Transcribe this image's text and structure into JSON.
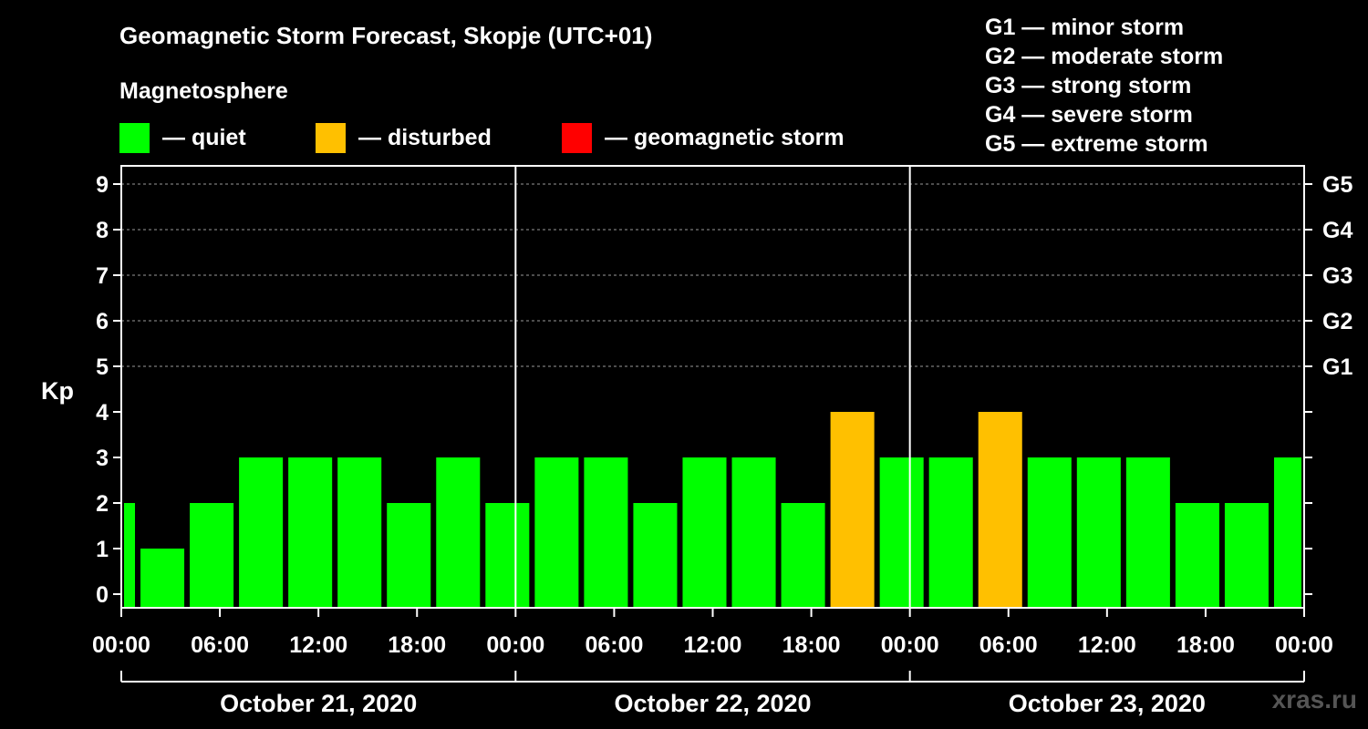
{
  "title": "Geomagnetic Storm Forecast, Skopje (UTC+01)",
  "subtitle": "Magnetosphere",
  "legend": [
    {
      "label": "— quiet",
      "color": "#00FF00"
    },
    {
      "label": "— disturbed",
      "color": "#FFC000"
    },
    {
      "label": "— geomagnetic storm",
      "color": "#FF0000"
    }
  ],
  "g_scale": [
    "G1 — minor storm",
    "G2 — moderate storm",
    "G3 — strong storm",
    "G4 — severe storm",
    "G5 — extreme storm"
  ],
  "watermark": "xras.ru",
  "chart_data": {
    "type": "bar",
    "title": "Geomagnetic Storm Forecast, Skopje (UTC+01)",
    "ylabel": "Kp",
    "ylim": [
      0,
      9
    ],
    "yticks": [
      "0",
      "1",
      "2",
      "3",
      "4",
      "5",
      "6",
      "7",
      "8",
      "9"
    ],
    "right_axis": [
      {
        "kp": 5,
        "label": "G1"
      },
      {
        "kp": 6,
        "label": "G2"
      },
      {
        "kp": 7,
        "label": "G3"
      },
      {
        "kp": 8,
        "label": "G4"
      },
      {
        "kp": 9,
        "label": "G5"
      }
    ],
    "x_range_hours": [
      0,
      72
    ],
    "xticks": [
      "00:00",
      "06:00",
      "12:00",
      "18:00",
      "00:00",
      "06:00",
      "12:00",
      "18:00",
      "00:00",
      "06:00",
      "12:00",
      "18:00",
      "00:00"
    ],
    "days": [
      "October 21, 2020",
      "October 22, 2020",
      "October 23, 2020"
    ],
    "threshold_disturbed": 4,
    "threshold_storm": 5,
    "bars": [
      {
        "start_h": 0,
        "end_h": 1,
        "kp": 2
      },
      {
        "start_h": 1,
        "end_h": 4,
        "kp": 1
      },
      {
        "start_h": 4,
        "end_h": 7,
        "kp": 2
      },
      {
        "start_h": 7,
        "end_h": 10,
        "kp": 3
      },
      {
        "start_h": 10,
        "end_h": 13,
        "kp": 3
      },
      {
        "start_h": 13,
        "end_h": 16,
        "kp": 3
      },
      {
        "start_h": 16,
        "end_h": 19,
        "kp": 2
      },
      {
        "start_h": 19,
        "end_h": 22,
        "kp": 3
      },
      {
        "start_h": 22,
        "end_h": 25,
        "kp": 2
      },
      {
        "start_h": 25,
        "end_h": 28,
        "kp": 3
      },
      {
        "start_h": 28,
        "end_h": 31,
        "kp": 3
      },
      {
        "start_h": 31,
        "end_h": 34,
        "kp": 2
      },
      {
        "start_h": 34,
        "end_h": 37,
        "kp": 3
      },
      {
        "start_h": 37,
        "end_h": 40,
        "kp": 3
      },
      {
        "start_h": 40,
        "end_h": 43,
        "kp": 2
      },
      {
        "start_h": 43,
        "end_h": 46,
        "kp": 4
      },
      {
        "start_h": 46,
        "end_h": 49,
        "kp": 3
      },
      {
        "start_h": 49,
        "end_h": 52,
        "kp": 3
      },
      {
        "start_h": 52,
        "end_h": 55,
        "kp": 4
      },
      {
        "start_h": 55,
        "end_h": 58,
        "kp": 3
      },
      {
        "start_h": 58,
        "end_h": 61,
        "kp": 3
      },
      {
        "start_h": 61,
        "end_h": 64,
        "kp": 3
      },
      {
        "start_h": 64,
        "end_h": 67,
        "kp": 2
      },
      {
        "start_h": 67,
        "end_h": 70,
        "kp": 2
      },
      {
        "start_h": 70,
        "end_h": 72,
        "kp": 3
      }
    ]
  }
}
